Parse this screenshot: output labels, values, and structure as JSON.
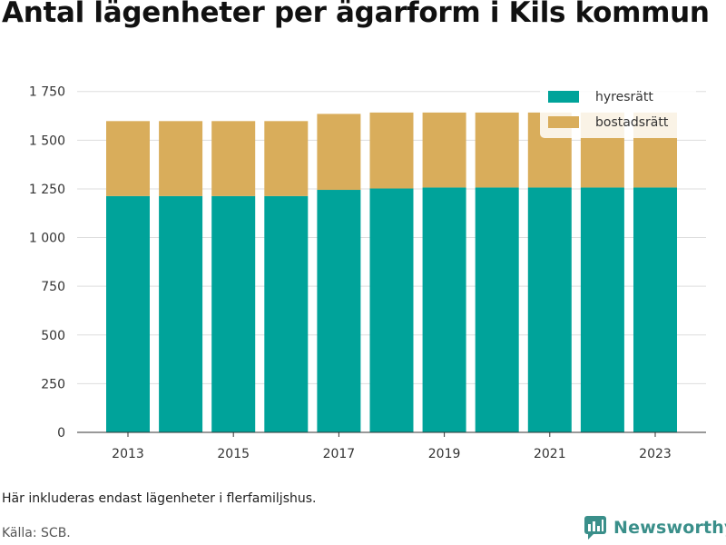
{
  "header": {
    "title": "Antal lägenheter per ägarform i Kils kommun"
  },
  "footer": {
    "note": "Här inkluderas endast lägenheter i flerfamiljshus.",
    "source": "Källa: SCB.",
    "brand": "Newsworthy",
    "brand_icon": "newsworthy-logo-icon"
  },
  "chart_data": {
    "type": "bar",
    "stacked": true,
    "categories": [
      "2013",
      "2014",
      "2015",
      "2016",
      "2017",
      "2018",
      "2019",
      "2020",
      "2021",
      "2022",
      "2023"
    ],
    "series": [
      {
        "name": "hyresrätt",
        "color": "#00a39a",
        "values": [
          1213,
          1213,
          1213,
          1213,
          1245,
          1252,
          1257,
          1257,
          1257,
          1257,
          1257
        ]
      },
      {
        "name": "bostadsrätt",
        "color": "#d9ad5b",
        "values": [
          385,
          385,
          385,
          385,
          390,
          390,
          385,
          385,
          385,
          385,
          385
        ]
      }
    ],
    "x_tick_labels": [
      "2013",
      "2015",
      "2017",
      "2019",
      "2021",
      "2023"
    ],
    "y_ticks": [
      0,
      250,
      500,
      750,
      1000,
      1250,
      1500,
      1750
    ],
    "y_tick_labels": [
      "0",
      "250",
      "500",
      "750",
      "1 000",
      "1 250",
      "1 500",
      "1 750"
    ],
    "ylim": [
      0,
      1800
    ],
    "title": "Antal lägenheter per ägarform i Kils kommun",
    "xlabel": "",
    "ylabel": "",
    "grid": true,
    "legend_position": "top-right"
  }
}
